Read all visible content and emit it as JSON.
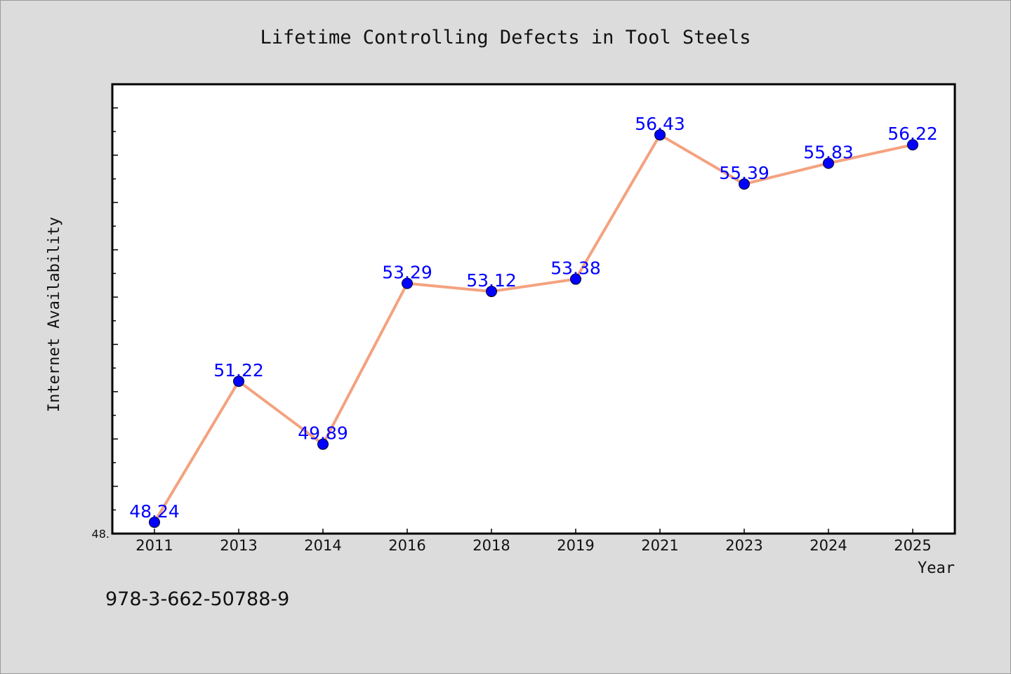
{
  "footer": {
    "code": "978-3-662-50788-9"
  },
  "chart_data": {
    "type": "line",
    "title": "Lifetime Controlling Defects in Tool Steels",
    "xlabel": "Year",
    "ylabel": "Internet Availability",
    "categories": [
      "2011",
      "2013",
      "2014",
      "2016",
      "2018",
      "2019",
      "2021",
      "2023",
      "2024",
      "2025"
    ],
    "series": [
      {
        "values": [
          48.24,
          51.22,
          49.89,
          53.29,
          53.12,
          53.38,
          56.43,
          55.39,
          55.83,
          56.22
        ]
      }
    ],
    "data_labels": [
      "48.24",
      "51.22",
      "49.89",
      "53.29",
      "53.12",
      "53.38",
      "56.43",
      "55.39",
      "55.83",
      "56.22"
    ],
    "ylim": [
      48.0,
      57.5
    ],
    "ytick_labels": [
      "48."
    ],
    "grid": false,
    "colors": {
      "line": "#f4a27f",
      "marker": "#0000ff",
      "label": "#0000ff"
    }
  }
}
